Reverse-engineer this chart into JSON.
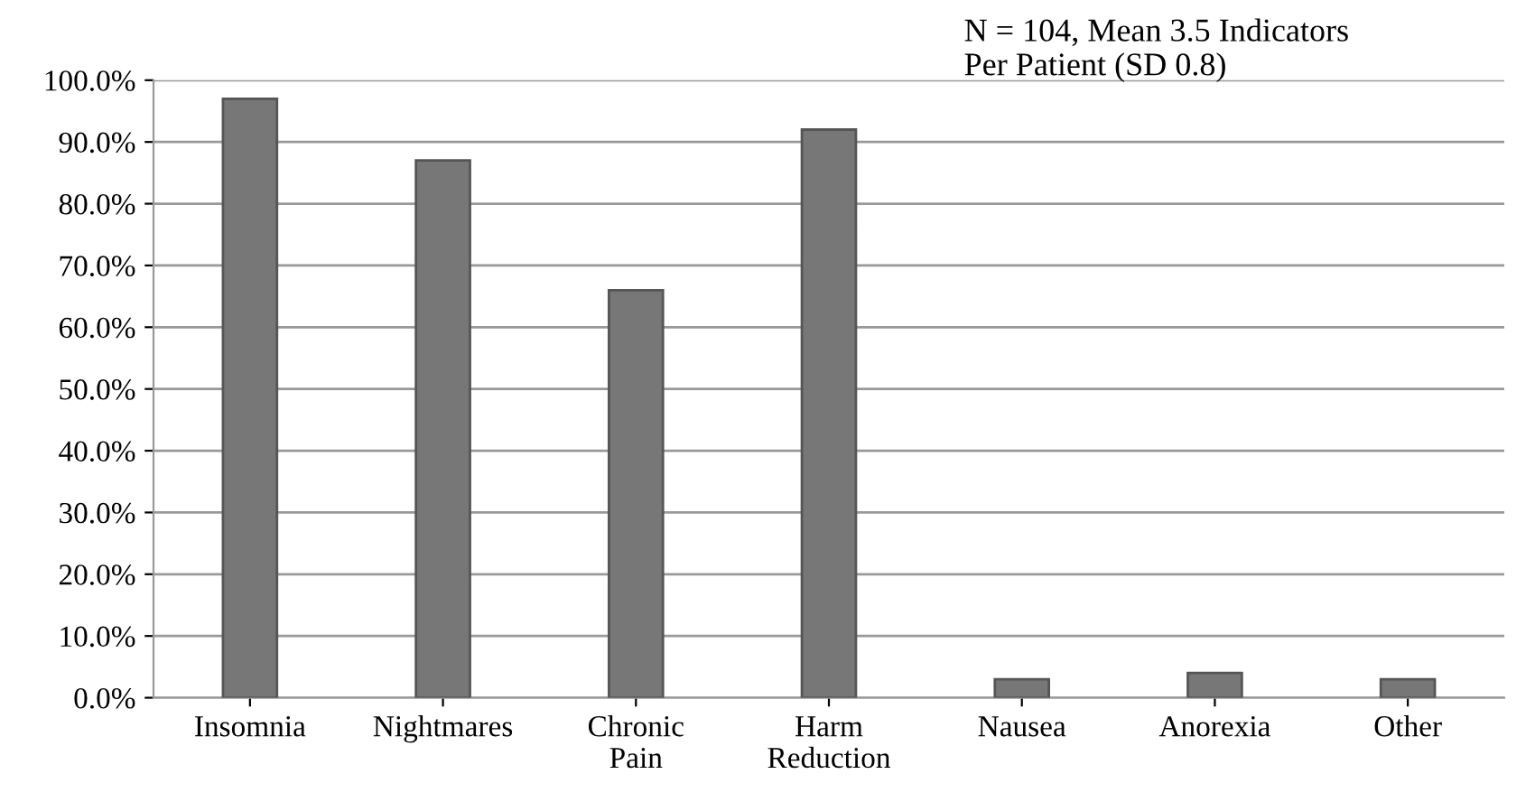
{
  "chart_data": {
    "type": "bar",
    "categories": [
      "Insomnia",
      "Nightmares",
      "Chronic\nPain",
      "Harm\nReduction",
      "Nausea",
      "Anorexia",
      "Other"
    ],
    "values": [
      97,
      87,
      66,
      92,
      3,
      4,
      3
    ],
    "color": "#777777",
    "ylim": [
      0,
      100
    ],
    "yticks": [
      {
        "value": 0,
        "label": "0.0%"
      },
      {
        "value": 10,
        "label": "10.0%"
      },
      {
        "value": 20,
        "label": "20.0%"
      },
      {
        "value": 30,
        "label": "30.0%"
      },
      {
        "value": 40,
        "label": "40.0%"
      },
      {
        "value": 50,
        "label": "50.0%"
      },
      {
        "value": 60,
        "label": "60.0%"
      },
      {
        "value": 70,
        "label": "70.0%"
      },
      {
        "value": 80,
        "label": "80.0%"
      },
      {
        "value": 90,
        "label": "90.0%"
      },
      {
        "value": 100,
        "label": "100.0%"
      }
    ],
    "grid": "y",
    "annotations": [
      "N = 104, Mean 3.5 Indicators\nPer Patient (SD 0.8)"
    ]
  }
}
